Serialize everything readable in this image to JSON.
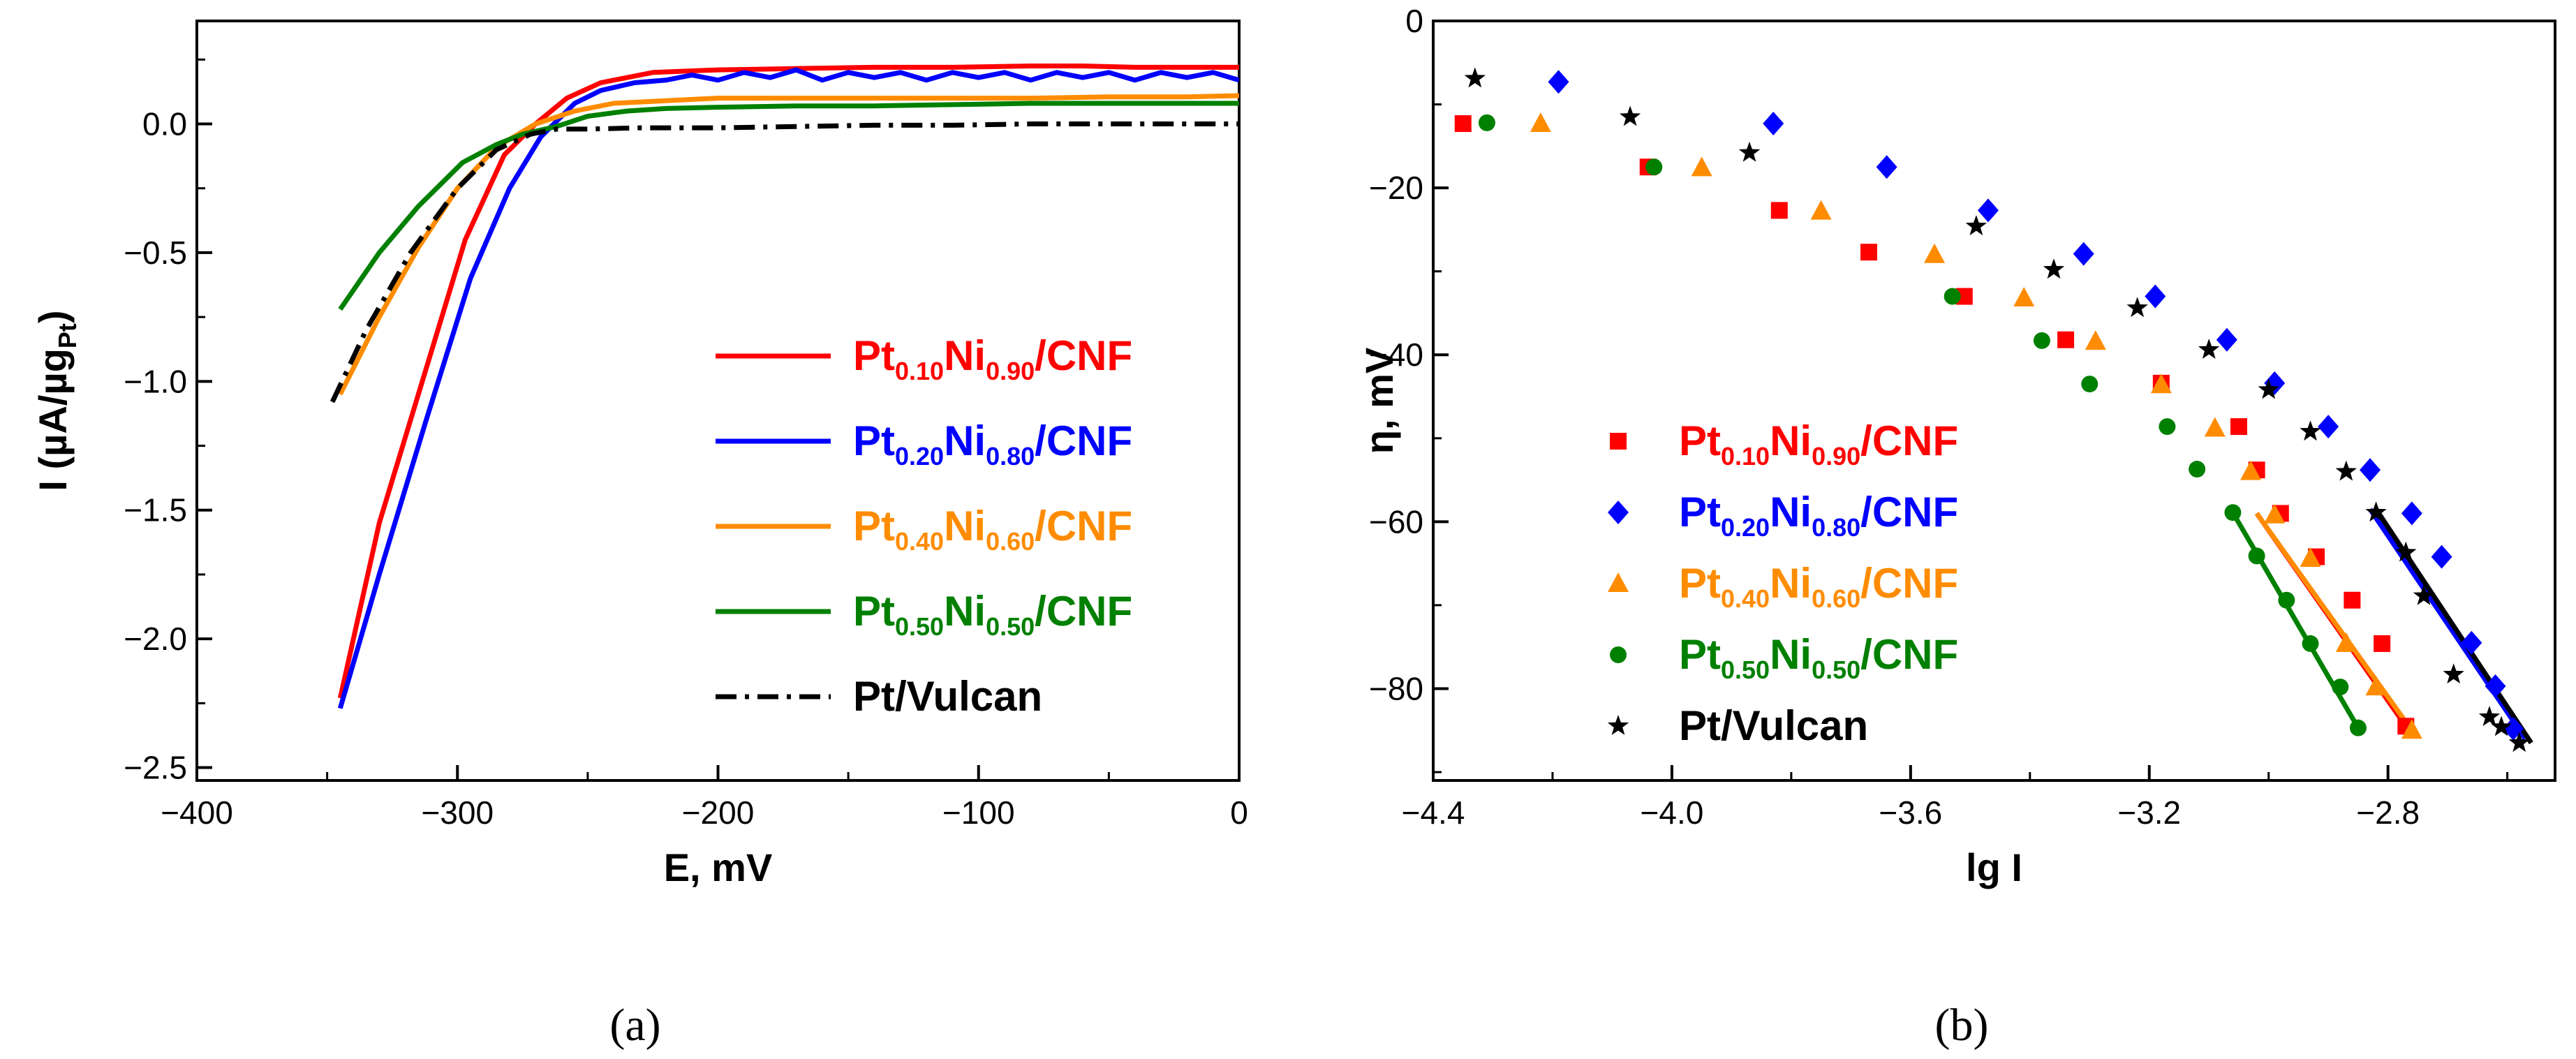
{
  "chart_data": [
    {
      "panel": "(a)",
      "type": "line",
      "xlabel": "E, mV",
      "ylabel": {
        "main": "I (µA/µg",
        "sub": "Pt",
        "close": ")"
      },
      "xlim": [
        -400,
        0
      ],
      "ylim": [
        -2.55,
        0.4
      ],
      "xticks": [
        -400,
        -300,
        -200,
        -100,
        0
      ],
      "xtick_labels": [
        "−400",
        "−300",
        "−200",
        "−100",
        "0"
      ],
      "yticks": [
        -2.5,
        -2.0,
        -1.5,
        -1.0,
        -0.5,
        0.0
      ],
      "ytick_labels": [
        "−2.5",
        "−2.0",
        "−1.5",
        "−1.0",
        "−0.5",
        "0.0"
      ],
      "legend_position": "lower-right",
      "series": [
        {
          "label": {
            "parts": [
              [
                "Pt",
                ""
              ],
              [
                "0.10",
                "sub"
              ],
              [
                "Ni",
                ""
              ],
              [
                "0.90",
                "sub"
              ],
              [
                "/CNF",
                ""
              ]
            ]
          },
          "color": "#ff0000",
          "style": "solid",
          "x": [
            -345,
            -330,
            -312,
            -297,
            -282,
            -270,
            -258,
            -245,
            -225,
            -200,
            -170,
            -140,
            -110,
            -80,
            -60,
            -40,
            -20,
            0
          ],
          "y": [
            -2.23,
            -1.55,
            -0.95,
            -0.45,
            -0.12,
            0.0,
            0.1,
            0.16,
            0.2,
            0.21,
            0.215,
            0.22,
            0.22,
            0.225,
            0.225,
            0.22,
            0.22,
            0.22
          ]
        },
        {
          "label": {
            "parts": [
              [
                "Pt",
                ""
              ],
              [
                "0.20",
                "sub"
              ],
              [
                "Ni",
                ""
              ],
              [
                "0.80",
                "sub"
              ],
              [
                "/CNF",
                ""
              ]
            ]
          },
          "color": "#0000ff",
          "style": "solid",
          "x": [
            -345,
            -330,
            -312,
            -295,
            -280,
            -268,
            -255,
            -245,
            -232,
            -220,
            -210,
            -200,
            -190,
            -180,
            -170,
            -160,
            -150,
            -140,
            -130,
            -120,
            -110,
            -100,
            -90,
            -80,
            -70,
            -60,
            -50,
            -40,
            -30,
            -20,
            -10,
            0
          ],
          "y": [
            -2.27,
            -1.75,
            -1.15,
            -0.6,
            -0.25,
            -0.05,
            0.08,
            0.13,
            0.16,
            0.17,
            0.19,
            0.17,
            0.2,
            0.18,
            0.21,
            0.17,
            0.2,
            0.18,
            0.2,
            0.17,
            0.2,
            0.18,
            0.2,
            0.17,
            0.2,
            0.18,
            0.2,
            0.17,
            0.2,
            0.18,
            0.2,
            0.17
          ]
        },
        {
          "label": {
            "parts": [
              [
                "Pt",
                ""
              ],
              [
                "0.40",
                "sub"
              ],
              [
                "Ni",
                ""
              ],
              [
                "0.60",
                "sub"
              ],
              [
                "/CNF",
                ""
              ]
            ]
          },
          "color": "#ff8c00",
          "style": "solid",
          "x": [
            -345,
            -330,
            -315,
            -300,
            -285,
            -270,
            -255,
            -240,
            -220,
            -200,
            -170,
            -140,
            -110,
            -80,
            -50,
            -20,
            0
          ],
          "y": [
            -1.05,
            -0.75,
            -0.48,
            -0.25,
            -0.09,
            0.0,
            0.05,
            0.08,
            0.09,
            0.1,
            0.1,
            0.1,
            0.1,
            0.1,
            0.105,
            0.105,
            0.11
          ]
        },
        {
          "label": {
            "parts": [
              [
                "Pt",
                ""
              ],
              [
                "0.50",
                "sub"
              ],
              [
                "Ni",
                ""
              ],
              [
                "0.50",
                "sub"
              ],
              [
                "/CNF",
                ""
              ]
            ]
          },
          "color": "#008000",
          "style": "solid",
          "x": [
            -345,
            -330,
            -315,
            -298,
            -285,
            -275,
            -262,
            -250,
            -235,
            -220,
            -200,
            -170,
            -140,
            -110,
            -80,
            -50,
            -20,
            0
          ],
          "y": [
            -0.72,
            -0.5,
            -0.32,
            -0.15,
            -0.08,
            -0.04,
            -0.01,
            0.03,
            0.05,
            0.06,
            0.065,
            0.07,
            0.07,
            0.075,
            0.08,
            0.08,
            0.08,
            0.08
          ]
        },
        {
          "label": {
            "parts": [
              [
                "Pt/Vulcan",
                ""
              ]
            ]
          },
          "color": "#000000",
          "style": "dashdot",
          "x": [
            -348,
            -335,
            -318,
            -300,
            -285,
            -272,
            -262,
            -250,
            -230,
            -200,
            -170,
            -140,
            -110,
            -80,
            -50,
            -20,
            0
          ],
          "y": [
            -1.08,
            -0.8,
            -0.5,
            -0.25,
            -0.1,
            -0.04,
            -0.02,
            -0.02,
            -0.015,
            -0.015,
            -0.01,
            -0.005,
            -0.005,
            0.0,
            0.0,
            0.0,
            0.0
          ]
        }
      ]
    },
    {
      "panel": "(b)",
      "type": "scatter",
      "xlabel": "lg I",
      "ylabel": "η, mV",
      "xlim": [
        -4.4,
        -2.52
      ],
      "ylim": [
        -91,
        0
      ],
      "xticks": [
        -4.4,
        -4.0,
        -3.6,
        -3.2,
        -2.8
      ],
      "xtick_labels": [
        "−4.4",
        "−4.0",
        "−3.6",
        "−3.2",
        "−2.8"
      ],
      "yticks": [
        0,
        -20,
        -40,
        -60,
        -80
      ],
      "ytick_labels": [
        "0",
        "−20",
        "−40",
        "−60",
        "−80"
      ],
      "legend_position": "bottom-left",
      "series": [
        {
          "label": {
            "parts": [
              [
                "Pt",
                ""
              ],
              [
                "0.10",
                "sub"
              ],
              [
                "Ni",
                ""
              ],
              [
                "0.90",
                "sub"
              ],
              [
                "/CNF",
                ""
              ]
            ]
          },
          "color": "#ff0000",
          "marker": "square",
          "x": [
            -4.35,
            -4.04,
            -3.82,
            -3.67,
            -3.51,
            -3.34,
            -3.18,
            -3.05,
            -3.02,
            -2.98,
            -2.92,
            -2.86,
            -2.81,
            -2.77
          ],
          "y": [
            -12.3,
            -17.5,
            -22.7,
            -27.7,
            -33.0,
            -38.2,
            -43.4,
            -48.6,
            -53.8,
            -59.0,
            -64.2,
            -69.4,
            -74.6,
            -84.5
          ],
          "fit": {
            "x": [
              -3.02,
              -2.77
            ],
            "y": [
              -59.0,
              -84.5
            ]
          }
        },
        {
          "label": {
            "parts": [
              [
                "Pt",
                ""
              ],
              [
                "0.20",
                "sub"
              ],
              [
                "Ni",
                ""
              ],
              [
                "0.80",
                "sub"
              ],
              [
                "/CNF",
                ""
              ]
            ]
          },
          "color": "#0000ff",
          "marker": "diamond",
          "x": [
            -4.19,
            -3.83,
            -3.64,
            -3.47,
            -3.31,
            -3.19,
            -3.07,
            -2.99,
            -2.9,
            -2.83,
            -2.76,
            -2.71,
            -2.66,
            -2.62,
            -2.59
          ],
          "y": [
            -7.3,
            -12.3,
            -17.5,
            -22.7,
            -27.9,
            -33.0,
            -38.2,
            -43.4,
            -48.6,
            -53.8,
            -59.0,
            -64.2,
            -74.5,
            -79.7,
            -84.8
          ],
          "fit": {
            "x": [
              -2.83,
              -2.57
            ],
            "y": [
              -58.5,
              -86.0
            ]
          }
        },
        {
          "label": {
            "parts": [
              [
                "Pt",
                ""
              ],
              [
                "0.40",
                "sub"
              ],
              [
                "Ni",
                ""
              ],
              [
                "0.60",
                "sub"
              ],
              [
                "/CNF",
                ""
              ]
            ]
          },
          "color": "#ff8c00",
          "marker": "triangle",
          "x": [
            -4.22,
            -3.95,
            -3.75,
            -3.56,
            -3.41,
            -3.29,
            -3.18,
            -3.09,
            -3.03,
            -2.99,
            -2.93,
            -2.87,
            -2.82,
            -2.76
          ],
          "y": [
            -12.3,
            -17.6,
            -22.8,
            -28.0,
            -33.2,
            -38.4,
            -43.6,
            -48.8,
            -54.0,
            -59.2,
            -64.4,
            -74.6,
            -79.8,
            -85.0
          ],
          "fit": {
            "x": [
              -3.02,
              -2.76
            ],
            "y": [
              -59.0,
              -85.0
            ]
          }
        },
        {
          "label": {
            "parts": [
              [
                "Pt",
                ""
              ],
              [
                "0.50",
                "sub"
              ],
              [
                "Ni",
                ""
              ],
              [
                "0.50",
                "sub"
              ],
              [
                "/CNF",
                ""
              ]
            ]
          },
          "color": "#008000",
          "marker": "circle",
          "x": [
            -4.31,
            -4.03,
            -3.53,
            -3.38,
            -3.3,
            -3.17,
            -3.12,
            -3.06,
            -3.02,
            -2.97,
            -2.93,
            -2.88,
            -2.85
          ],
          "y": [
            -12.2,
            -17.5,
            -33.0,
            -38.3,
            -43.5,
            -48.6,
            -53.7,
            -58.9,
            -64.1,
            -69.4,
            -74.6,
            -79.8,
            -84.7
          ],
          "fit": {
            "x": [
              -3.06,
              -2.85
            ],
            "y": [
              -58.9,
              -84.7
            ]
          }
        },
        {
          "label": {
            "parts": [
              [
                "Pt/Vulcan",
                ""
              ]
            ]
          },
          "color": "#000000",
          "marker": "star",
          "x": [
            -4.33,
            -4.07,
            -3.87,
            -3.49,
            -3.36,
            -3.22,
            -3.1,
            -3.0,
            -2.93,
            -2.87,
            -2.82,
            -2.77,
            -2.74,
            -2.69,
            -2.63,
            -2.61,
            -2.58
          ],
          "y": [
            -6.9,
            -11.5,
            -15.8,
            -24.6,
            -29.8,
            -34.4,
            -39.4,
            -44.2,
            -49.2,
            -54.0,
            -58.9,
            -63.7,
            -68.9,
            -78.3,
            -83.4,
            -84.6,
            -86.5
          ],
          "fit": {
            "x": [
              -2.82,
              -2.56
            ],
            "y": [
              -58.5,
              -86.5
            ]
          }
        }
      ]
    }
  ],
  "panel_labels": {
    "a": "(a)",
    "b": "(b)"
  }
}
